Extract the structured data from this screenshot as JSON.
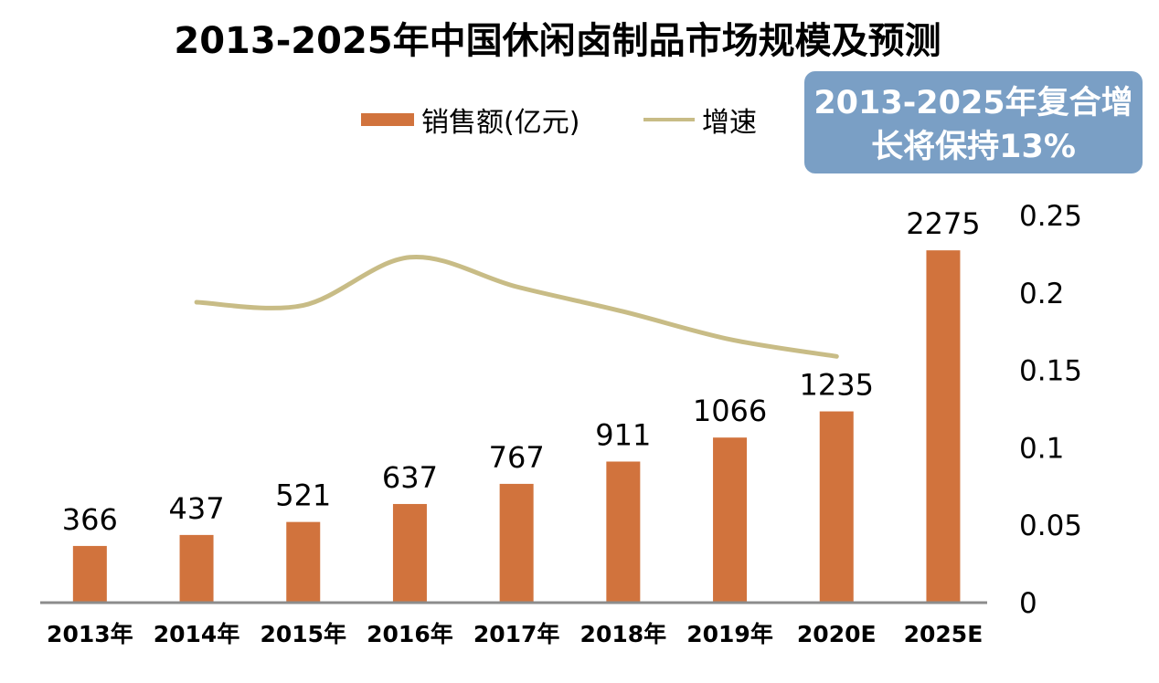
{
  "chart_data": {
    "type": "bar",
    "title": "2013-2025年中国休闲卤制品市场规模及预测",
    "categories": [
      "2013年",
      "2014年",
      "2015年",
      "2016年",
      "2017年",
      "2018年",
      "2019年",
      "2020E",
      "2025E"
    ],
    "series": [
      {
        "name": "销售额(亿元)",
        "type": "bar",
        "axis": "left",
        "color": "#D1733D",
        "values": [
          366,
          437,
          521,
          637,
          767,
          911,
          1066,
          1235,
          2275
        ],
        "labels": [
          "366",
          "437",
          "521",
          "637",
          "767",
          "911",
          "1066",
          "1235",
          "2275"
        ]
      },
      {
        "name": "增速",
        "type": "line",
        "axis": "right",
        "color": "#C8BC86",
        "values": [
          null,
          0.194,
          0.192,
          0.223,
          0.204,
          0.188,
          0.17,
          0.159,
          null
        ]
      }
    ],
    "left_axis": {
      "min": 0,
      "max": 2500,
      "visible": false
    },
    "right_axis": {
      "min": 0,
      "max": 0.25,
      "ticks": [
        "0",
        "0.05",
        "0.1",
        "0.15",
        "0.2",
        "0.25"
      ]
    },
    "legend": {
      "position": "top",
      "items": [
        "销售额(亿元)",
        "增速"
      ]
    },
    "annotation": {
      "text_line1": "2013-2025年复合增",
      "text_line2": "长将保持13%",
      "position": "top-right",
      "background": "#7A9FC5"
    },
    "grid": false
  }
}
